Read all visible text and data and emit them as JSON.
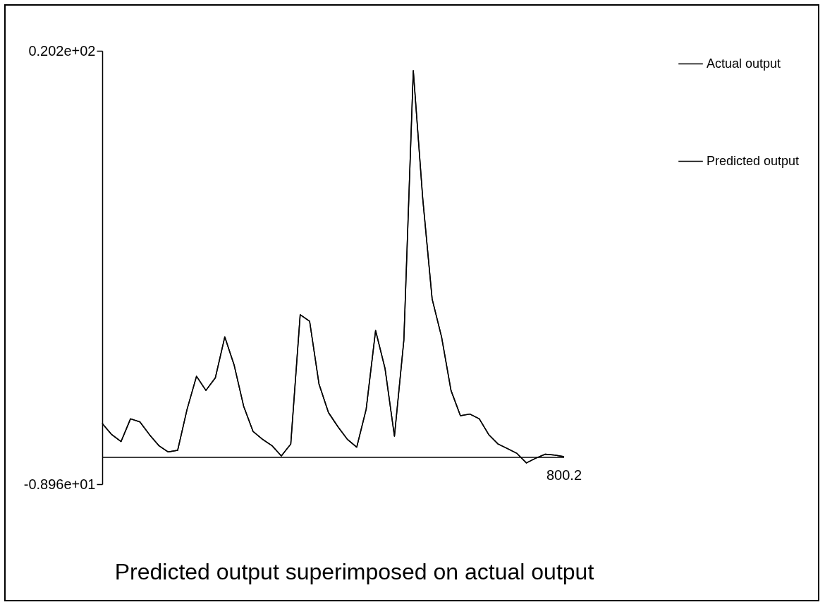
{
  "chart_data": {
    "type": "line",
    "title": "Predicted output superimposed on actual output",
    "categories": [
      null,
      null,
      null,
      null,
      null,
      null,
      null,
      null,
      null,
      null,
      null,
      null,
      null,
      null,
      null,
      null,
      null,
      null,
      null,
      null,
      null,
      null,
      null,
      null,
      null,
      null,
      null,
      null,
      null,
      null,
      null,
      null,
      null,
      null,
      null,
      null,
      null,
      null,
      null,
      null,
      null,
      null,
      null,
      null,
      null,
      null,
      null,
      null,
      null,
      null
    ],
    "series": [
      {
        "name": "Actual output",
        "color": "#000000",
        "values": [
          -4.88,
          -5.62,
          -6.09,
          -4.56,
          -4.77,
          -5.62,
          -6.36,
          -6.79,
          -6.68,
          -3.92,
          -1.7,
          -2.65,
          -1.8,
          0.95,
          -0.96,
          -3.71,
          -5.41,
          -5.94,
          -6.36,
          -7.06,
          -6.26,
          2.44,
          2.01,
          -2.23,
          -4.14,
          -5.09,
          -5.94,
          -6.47,
          -3.92,
          1.38,
          -1.17,
          -5.73,
          0.74,
          18.87,
          10.28,
          3.5,
          0.95,
          -2.65,
          -4.35,
          -4.24,
          -4.56,
          -5.62,
          -6.26,
          -6.57,
          -6.89,
          -7.53,
          -7.21,
          -6.94,
          -7.0,
          -7.11
        ]
      },
      {
        "name": "Predicted output",
        "color": "#000000",
        "values": [
          -4.88,
          -5.62,
          -6.09,
          -4.56,
          -4.77,
          -5.62,
          -6.36,
          -6.79,
          -6.68,
          -3.92,
          -1.7,
          -2.65,
          -1.8,
          0.95,
          -0.96,
          -3.71,
          -5.41,
          -5.94,
          -6.36,
          -7.06,
          -6.26,
          2.44,
          2.01,
          -2.23,
          -4.14,
          -5.09,
          -5.94,
          -6.47,
          -3.92,
          1.38,
          -1.17,
          -5.73,
          0.74,
          18.87,
          10.28,
          3.5,
          0.95,
          -2.65,
          -4.35,
          -4.24,
          -4.56,
          -5.62,
          -6.26,
          -6.57,
          -6.89,
          -7.53,
          -7.21,
          -6.94,
          -7.0,
          -7.11
        ]
      }
    ],
    "annotations": [
      "800.2"
    ],
    "ylim": [
      -8.96,
      20.2
    ],
    "yticks": [
      {
        "value": -8.96,
        "label": "-0.896e+01"
      },
      {
        "value": 20.2,
        "label": "0.202e+02"
      }
    ],
    "ref_lines": [
      {
        "axis": "y",
        "value": -7.15,
        "color": "#000000"
      }
    ],
    "legend": "right",
    "grid": false,
    "marker": "none",
    "line_style": "solid"
  }
}
